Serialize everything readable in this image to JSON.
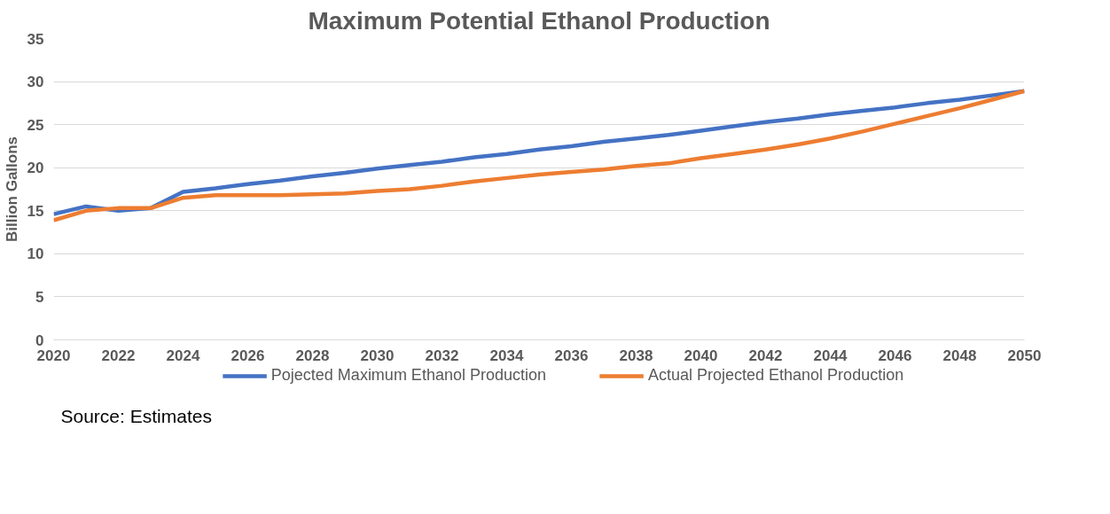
{
  "chart_data": {
    "type": "line",
    "title": "Maximum Potential Ethanol Production",
    "ylabel": "Billion Gallons",
    "x": [
      2020,
      2021,
      2022,
      2023,
      2024,
      2025,
      2026,
      2027,
      2028,
      2029,
      2030,
      2031,
      2032,
      2033,
      2034,
      2035,
      2036,
      2037,
      2038,
      2039,
      2040,
      2041,
      2042,
      2043,
      2044,
      2045,
      2046,
      2047,
      2048,
      2049,
      2050
    ],
    "series": [
      {
        "name": "Pojected Maximum Ethanol Production",
        "color": "#4472c4",
        "values": [
          14.6,
          15.5,
          15.0,
          15.3,
          17.2,
          17.6,
          18.1,
          18.5,
          19.0,
          19.4,
          19.9,
          20.3,
          20.7,
          21.2,
          21.6,
          22.1,
          22.5,
          23.0,
          23.4,
          23.8,
          24.3,
          24.8,
          25.3,
          25.7,
          26.2,
          26.6,
          27.0,
          27.5,
          27.9,
          28.4,
          28.9
        ]
      },
      {
        "name": "Actual Projected Ethanol Production",
        "color": "#ed7d31",
        "values": [
          13.9,
          15.0,
          15.3,
          15.3,
          16.5,
          16.8,
          16.8,
          16.8,
          16.9,
          17.0,
          17.3,
          17.5,
          17.9,
          18.4,
          18.8,
          19.2,
          19.5,
          19.8,
          20.2,
          20.5,
          21.1,
          21.6,
          22.1,
          22.7,
          23.4,
          24.2,
          25.1,
          26.0,
          26.9,
          27.9,
          28.9
        ]
      }
    ],
    "xlim": [
      2020,
      2050
    ],
    "xticks": [
      2020,
      2022,
      2024,
      2026,
      2028,
      2030,
      2032,
      2034,
      2036,
      2038,
      2040,
      2042,
      2044,
      2046,
      2048,
      2050
    ],
    "ylim": [
      0,
      35
    ],
    "yticks": [
      0,
      5,
      10,
      15,
      20,
      25,
      30,
      35
    ],
    "grid": "y",
    "legend": "bottom",
    "line_style": "solid",
    "marker": "none",
    "annotations": [
      "Source: Estimates"
    ]
  }
}
